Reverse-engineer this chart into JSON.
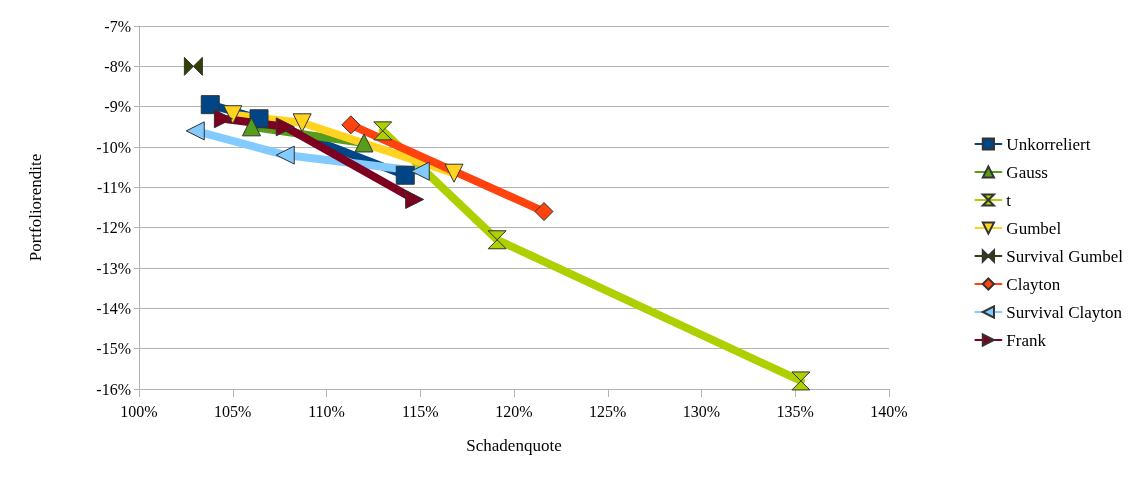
{
  "chart_data": {
    "type": "line",
    "xlabel": "Schadenquote",
    "ylabel": "Portfoliorendite",
    "xlim": [
      100,
      140
    ],
    "ylim": [
      -16,
      -7
    ],
    "xticks": [
      {
        "value": 100,
        "label": "100%"
      },
      {
        "value": 105,
        "label": "105%"
      },
      {
        "value": 110,
        "label": "110%"
      },
      {
        "value": 115,
        "label": "115%"
      },
      {
        "value": 120,
        "label": "120%"
      },
      {
        "value": 125,
        "label": "125%"
      },
      {
        "value": 130,
        "label": "130%"
      },
      {
        "value": 135,
        "label": "135%"
      },
      {
        "value": 140,
        "label": "140%"
      }
    ],
    "yticks": [
      {
        "value": -16,
        "label": "-16%"
      },
      {
        "value": -15,
        "label": "-15%"
      },
      {
        "value": -14,
        "label": "-14%"
      },
      {
        "value": -13,
        "label": "-13%"
      },
      {
        "value": -12,
        "label": "-12%"
      },
      {
        "value": -11,
        "label": "-11%"
      },
      {
        "value": -10,
        "label": "-10%"
      },
      {
        "value": -9,
        "label": "-9%"
      },
      {
        "value": -8,
        "label": "-8%"
      },
      {
        "value": -7,
        "label": "-7%"
      }
    ],
    "grid": "y",
    "legend": "right",
    "line_style": "solid",
    "series": [
      {
        "name": "Unkorreliert",
        "color": "#004586",
        "marker": "square",
        "x": [
          103.8,
          106.4,
          114.2
        ],
        "values": [
          -8.95,
          -9.3,
          -10.7
        ]
      },
      {
        "name": "Gauss",
        "color": "#579d1c",
        "marker": "triangle",
        "x": [
          106.0,
          112.0
        ],
        "values": [
          -9.5,
          -9.9
        ]
      },
      {
        "name": "t",
        "color": "#aecf00",
        "marker": "triangle-hourglass",
        "x": [
          113.0,
          119.1,
          135.3
        ],
        "values": [
          -9.6,
          -12.3,
          -15.8
        ]
      },
      {
        "name": "Gumbel",
        "color": "#ffd320",
        "marker": "triangle-down",
        "x": [
          105.0,
          108.7,
          116.8
        ],
        "values": [
          -9.2,
          -9.4,
          -10.65
        ]
      },
      {
        "name": "Survival Gumbel",
        "color": "#314004",
        "marker": "triangle-bowtie",
        "x": [
          102.9
        ],
        "values": [
          -8.0
        ]
      },
      {
        "name": "Clayton",
        "color": "#ff420e",
        "marker": "diamond",
        "x": [
          111.3,
          121.6
        ],
        "values": [
          -9.45,
          -11.6
        ]
      },
      {
        "name": "Survival Clayton",
        "color": "#83caff",
        "marker": "triangle-left",
        "x": [
          103.0,
          107.8,
          115.0
        ],
        "values": [
          -9.6,
          -10.2,
          -10.6
        ]
      },
      {
        "name": "Frank",
        "color": "#7e0021",
        "marker": "triangle-right",
        "x": [
          104.5,
          107.8,
          114.7
        ],
        "values": [
          -9.3,
          -9.5,
          -11.3
        ]
      }
    ]
  }
}
